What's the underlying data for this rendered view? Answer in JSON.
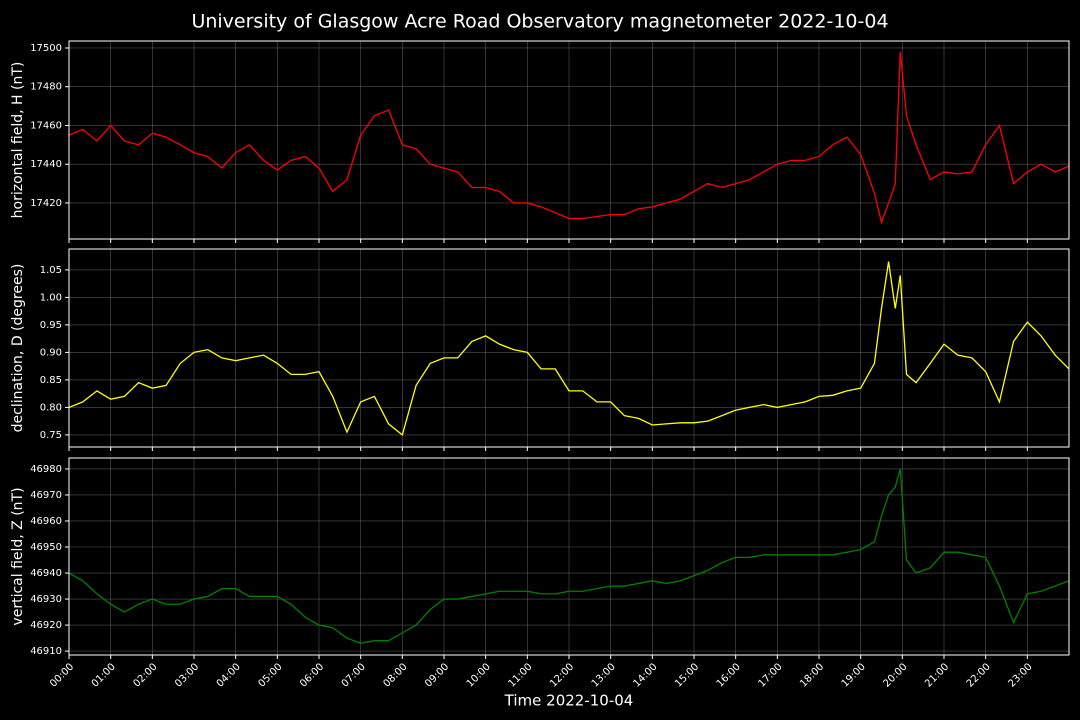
{
  "chart_data": [
    {
      "type": "line",
      "title": "University of Glasgow Acre Road Observatory magnetometer 2022-10-04",
      "ylabel": "horizontal field, H (nT)",
      "color": "#ff0000",
      "grid": true,
      "x": [
        0,
        0.33,
        0.67,
        1,
        1.33,
        1.67,
        2,
        2.33,
        2.67,
        3,
        3.33,
        3.67,
        4,
        4.33,
        4.67,
        5,
        5.33,
        5.67,
        6,
        6.33,
        6.67,
        7,
        7.33,
        7.67,
        8,
        8.33,
        8.67,
        9,
        9.33,
        9.67,
        10,
        10.33,
        10.67,
        11,
        11.33,
        11.67,
        12,
        12.33,
        12.67,
        13,
        13.33,
        13.67,
        14,
        14.33,
        14.67,
        15,
        15.33,
        15.67,
        16,
        16.33,
        16.67,
        17,
        17.33,
        17.67,
        18,
        18.33,
        18.67,
        19,
        19.33,
        19.5,
        19.67,
        19.83,
        19.95,
        20.1,
        20.33,
        20.67,
        21,
        21.33,
        21.67,
        22,
        22.33,
        22.67,
        23,
        23.33,
        23.67,
        24
      ],
      "values": [
        17455,
        17458,
        17452,
        17460,
        17452,
        17450,
        17456,
        17454,
        17450,
        17446,
        17444,
        17438,
        17446,
        17450,
        17442,
        17437,
        17442,
        17444,
        17438,
        17426,
        17432,
        17455,
        17465,
        17468,
        17450,
        17448,
        17440,
        17438,
        17436,
        17428,
        17428,
        17426,
        17420,
        17420,
        17418,
        17415,
        17412,
        17412,
        17413,
        17414,
        17414,
        17417,
        17418,
        17420,
        17422,
        17426,
        17430,
        17428,
        17430,
        17432,
        17436,
        17440,
        17442,
        17442,
        17444,
        17450,
        17454,
        17445,
        17425,
        17410,
        17420,
        17430,
        17498,
        17465,
        17450,
        17432,
        17436,
        17435,
        17436,
        17450,
        17460,
        17430,
        17436,
        17440,
        17436,
        17439
      ],
      "xlim": [
        0,
        24
      ],
      "xticks": [
        0,
        1,
        2,
        3,
        4,
        5,
        6,
        7,
        8,
        9,
        10,
        11,
        12,
        13,
        14,
        15,
        16,
        17,
        18,
        19,
        20,
        21,
        22,
        23
      ],
      "ylim": [
        17401.4,
        17503.6
      ],
      "yticks": [
        17420,
        17440,
        17460,
        17480,
        17500
      ]
    },
    {
      "type": "line",
      "ylabel": "declination, D (degrees)",
      "color": "#ffff00",
      "grid": true,
      "x": [
        0,
        0.33,
        0.67,
        1,
        1.33,
        1.67,
        2,
        2.33,
        2.67,
        3,
        3.33,
        3.67,
        4,
        4.33,
        4.67,
        5,
        5.33,
        5.67,
        6,
        6.33,
        6.67,
        7,
        7.33,
        7.67,
        8,
        8.33,
        8.67,
        9,
        9.33,
        9.67,
        10,
        10.33,
        10.67,
        11,
        11.33,
        11.67,
        12,
        12.33,
        12.67,
        13,
        13.33,
        13.67,
        14,
        14.33,
        14.67,
        15,
        15.33,
        15.67,
        16,
        16.33,
        16.67,
        17,
        17.33,
        17.67,
        18,
        18.33,
        18.67,
        19,
        19.33,
        19.5,
        19.67,
        19.83,
        19.95,
        20.1,
        20.33,
        20.67,
        21,
        21.33,
        21.67,
        22,
        22.33,
        22.67,
        23,
        23.33,
        23.67,
        24
      ],
      "values": [
        0.8,
        0.81,
        0.83,
        0.815,
        0.82,
        0.845,
        0.835,
        0.84,
        0.88,
        0.9,
        0.905,
        0.89,
        0.885,
        0.89,
        0.895,
        0.88,
        0.86,
        0.86,
        0.865,
        0.82,
        0.755,
        0.81,
        0.82,
        0.77,
        0.75,
        0.84,
        0.88,
        0.89,
        0.89,
        0.92,
        0.93,
        0.915,
        0.905,
        0.9,
        0.87,
        0.87,
        0.83,
        0.83,
        0.81,
        0.81,
        0.785,
        0.78,
        0.768,
        0.77,
        0.772,
        0.772,
        0.775,
        0.785,
        0.795,
        0.8,
        0.805,
        0.8,
        0.805,
        0.81,
        0.82,
        0.822,
        0.83,
        0.835,
        0.88,
        0.98,
        1.065,
        0.98,
        1.04,
        0.86,
        0.845,
        0.88,
        0.915,
        0.895,
        0.89,
        0.865,
        0.81,
        0.92,
        0.955,
        0.93,
        0.895,
        0.87
      ],
      "xlim": [
        0,
        24
      ],
      "xticks": [
        0,
        1,
        2,
        3,
        4,
        5,
        6,
        7,
        8,
        9,
        10,
        11,
        12,
        13,
        14,
        15,
        16,
        17,
        18,
        19,
        20,
        21,
        22,
        23
      ],
      "ylim": [
        0.728,
        1.088
      ],
      "yticks": [
        0.75,
        {
          "value": 0.8,
          "label": "0.80"
        },
        0.85,
        {
          "value": 0.9,
          "label": "0.90"
        },
        0.95,
        {
          "value": 1,
          "label": "1.00"
        },
        1.05
      ]
    },
    {
      "type": "line",
      "ylabel": "vertical field, Z (nT)",
      "xlabel": "Time 2022-10-04",
      "color": "#008000",
      "grid": true,
      "x": [
        0,
        0.33,
        0.67,
        1,
        1.33,
        1.67,
        2,
        2.33,
        2.67,
        3,
        3.33,
        3.67,
        4,
        4.33,
        4.67,
        5,
        5.33,
        5.67,
        6,
        6.33,
        6.67,
        7,
        7.33,
        7.67,
        8,
        8.33,
        8.67,
        9,
        9.33,
        9.67,
        10,
        10.33,
        10.67,
        11,
        11.33,
        11.67,
        12,
        12.33,
        12.67,
        13,
        13.33,
        13.67,
        14,
        14.33,
        14.67,
        15,
        15.33,
        15.67,
        16,
        16.33,
        16.67,
        17,
        17.33,
        17.67,
        18,
        18.33,
        18.67,
        19,
        19.33,
        19.5,
        19.67,
        19.83,
        19.95,
        20.1,
        20.33,
        20.67,
        21,
        21.33,
        21.67,
        22,
        22.33,
        22.67,
        23,
        23.33,
        23.67,
        24
      ],
      "values": [
        46940,
        46937,
        46932,
        46928,
        46925,
        46928,
        46930,
        46928,
        46928,
        46930,
        46931,
        46934,
        46934,
        46931,
        46931,
        46931,
        46928,
        46923,
        46920,
        46919,
        46915,
        46913,
        46914,
        46914,
        46917,
        46920,
        46926,
        46930,
        46930,
        46931,
        46932,
        46933,
        46933,
        46933,
        46932,
        46932,
        46933,
        46933,
        46934,
        46935,
        46935,
        46936,
        46937,
        46936,
        46937,
        46939,
        46941,
        46944,
        46946,
        46946,
        46947,
        46947,
        46947,
        46947,
        46947,
        46947,
        46948,
        46949,
        46952,
        46962,
        46970,
        46973,
        46980,
        46945,
        46940,
        46942,
        46948,
        46948,
        46947,
        46946,
        46935,
        46921,
        46932,
        46933,
        46935,
        46937
      ],
      "xlim": [
        0,
        24
      ],
      "xticks": [
        {
          "value": 0,
          "label": "00:00"
        },
        {
          "value": 1,
          "label": "01:00"
        },
        {
          "value": 2,
          "label": "02:00"
        },
        {
          "value": 3,
          "label": "03:00"
        },
        {
          "value": 4,
          "label": "04:00"
        },
        {
          "value": 5,
          "label": "05:00"
        },
        {
          "value": 6,
          "label": "06:00"
        },
        {
          "value": 7,
          "label": "07:00"
        },
        {
          "value": 8,
          "label": "08:00"
        },
        {
          "value": 9,
          "label": "09:00"
        },
        {
          "value": 10,
          "label": "10:00"
        },
        {
          "value": 11,
          "label": "11:00"
        },
        {
          "value": 12,
          "label": "12:00"
        },
        {
          "value": 13,
          "label": "13:00"
        },
        {
          "value": 14,
          "label": "14:00"
        },
        {
          "value": 15,
          "label": "15:00"
        },
        {
          "value": 16,
          "label": "16:00"
        },
        {
          "value": 17,
          "label": "17:00"
        },
        {
          "value": 18,
          "label": "18:00"
        },
        {
          "value": 19,
          "label": "19:00"
        },
        {
          "value": 20,
          "label": "20:00"
        },
        {
          "value": 21,
          "label": "21:00"
        },
        {
          "value": 22,
          "label": "22:00"
        },
        {
          "value": 23,
          "label": "23:00"
        }
      ],
      "ylim": [
        46908.5,
        46984.2
      ],
      "yticks": [
        46910,
        46920,
        46930,
        46940,
        46950,
        46960,
        46970,
        46980
      ]
    }
  ]
}
